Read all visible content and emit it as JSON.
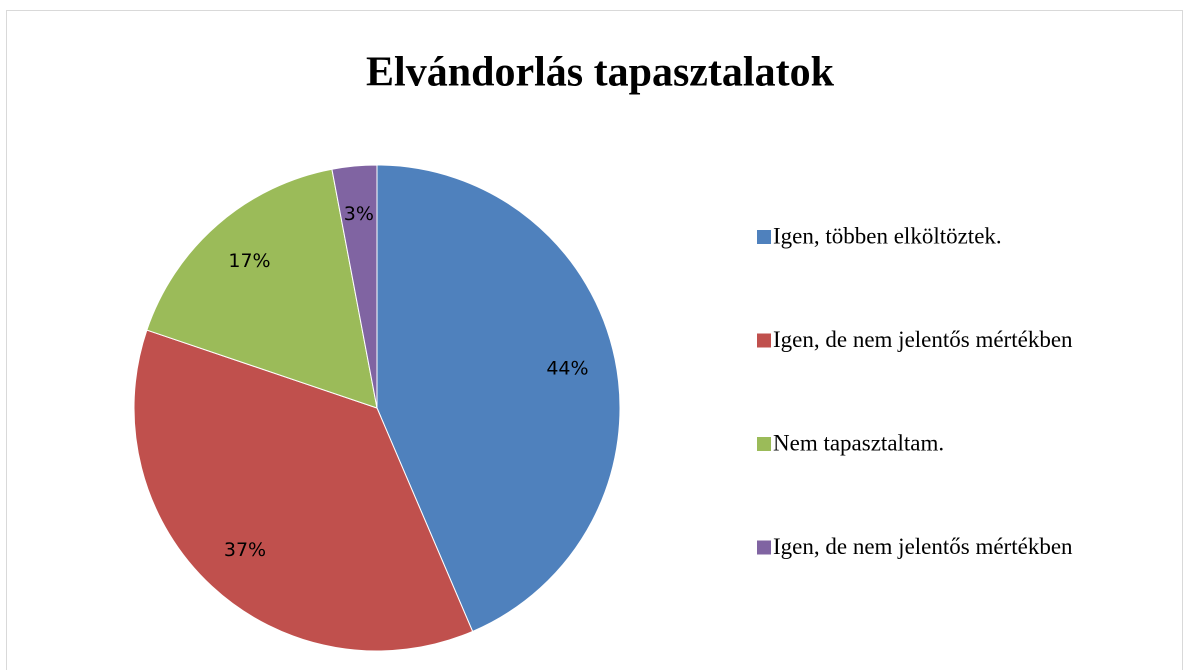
{
  "chart_data": {
    "type": "pie",
    "title": "Elvándorlás tapasztalatok",
    "categories": [
      "Igen, többen elköltöztek.",
      "Igen, de nem jelentős mértékben",
      "Nem tapasztaltam.",
      "Igen, de nem jelentős mértékben"
    ],
    "values": [
      44,
      37,
      17,
      3
    ],
    "value_labels": [
      "44%",
      "37%",
      "17%",
      "3%"
    ],
    "colors": [
      "#4f81bd",
      "#c0504d",
      "#9bbb59",
      "#8064a2"
    ],
    "legend": "right"
  }
}
